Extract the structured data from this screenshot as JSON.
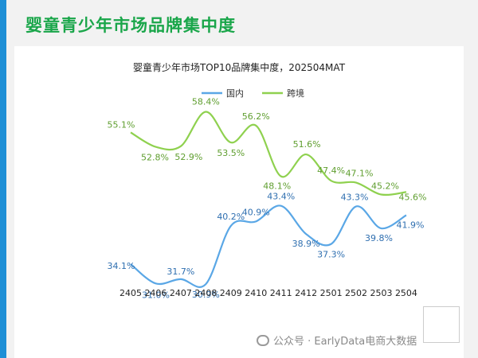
{
  "header": {
    "title": "婴童青少年市场品牌集中度"
  },
  "watermark": {
    "text": "公众号 · EarlyData电商大数据"
  },
  "chart_data": {
    "type": "line",
    "title": "婴童青少年市场TOP10品牌集中度，202504MAT",
    "categories": [
      "2405",
      "2406",
      "2407",
      "2408",
      "2409",
      "2410",
      "2411",
      "2412",
      "2501",
      "2502",
      "2503",
      "2504"
    ],
    "legend_position": "top",
    "series": [
      {
        "name": "国内",
        "color": "#5aa7e6",
        "values": [
          34.1,
          31.0,
          31.7,
          30.9,
          40.2,
          40.9,
          43.4,
          38.9,
          37.3,
          43.3,
          39.8,
          41.9
        ],
        "labels": [
          "34.1%",
          "31.0%",
          "31.7%",
          "30.9%",
          "40.2%",
          "40.9%",
          "43.4%",
          "38.9%",
          "37.3%",
          "43.3%",
          "39.8%",
          "41.9%"
        ]
      },
      {
        "name": "跨境",
        "color": "#8fd14f",
        "values": [
          55.1,
          52.8,
          52.9,
          58.4,
          53.5,
          56.2,
          48.1,
          51.6,
          47.4,
          47.1,
          45.2,
          45.6
        ],
        "labels": [
          "55.1%",
          "52.8%",
          "52.9%",
          "58.4%",
          "53.5%",
          "56.2%",
          "48.1%",
          "51.6%",
          "47.4%",
          "47.1%",
          "45.2%",
          "45.6%"
        ]
      }
    ],
    "ylim": [
      28,
      61
    ],
    "grid": false
  }
}
